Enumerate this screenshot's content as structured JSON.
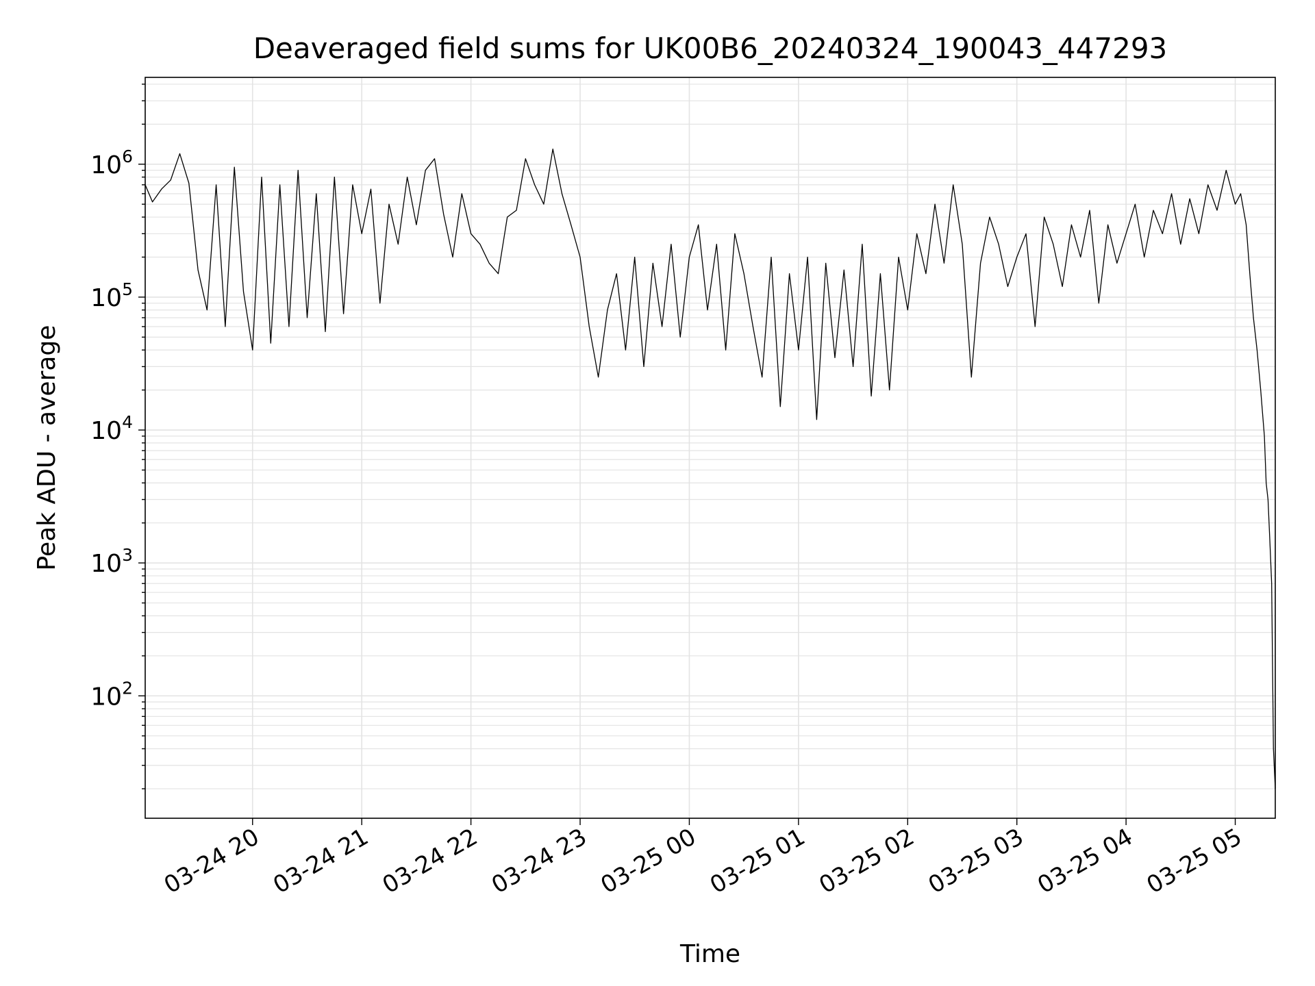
{
  "chart_data": {
    "type": "line",
    "title": "Deaveraged field sums for UK00B6_20240324_190043_447293",
    "xlabel": "Time",
    "ylabel": "Peak ADU - average",
    "x_axis": {
      "scale": "time",
      "range": [
        "2024-03-24 19:01",
        "2024-03-25 05:22"
      ],
      "ticks": [
        {
          "value": "2024-03-24 20:00",
          "label": "03-24 20"
        },
        {
          "value": "2024-03-24 21:00",
          "label": "03-24 21"
        },
        {
          "value": "2024-03-24 22:00",
          "label": "03-24 22"
        },
        {
          "value": "2024-03-24 23:00",
          "label": "03-24 23"
        },
        {
          "value": "2024-03-25 00:00",
          "label": "03-25 00"
        },
        {
          "value": "2024-03-25 01:00",
          "label": "03-25 01"
        },
        {
          "value": "2024-03-25 02:00",
          "label": "03-25 02"
        },
        {
          "value": "2024-03-25 03:00",
          "label": "03-25 03"
        },
        {
          "value": "2024-03-25 04:00",
          "label": "03-25 04"
        },
        {
          "value": "2024-03-25 05:00",
          "label": "03-25 05"
        }
      ]
    },
    "y_axis": {
      "scale": "log",
      "range": [
        12,
        4500000
      ],
      "ticks": [
        {
          "value": 100,
          "base": "10",
          "exp": "2"
        },
        {
          "value": 1000,
          "base": "10",
          "exp": "3"
        },
        {
          "value": 10000,
          "base": "10",
          "exp": "4"
        },
        {
          "value": 100000,
          "base": "10",
          "exp": "5"
        },
        {
          "value": 1000000,
          "base": "10",
          "exp": "6"
        }
      ]
    },
    "grid": true,
    "line_color": "#000000",
    "series": [
      {
        "x": [
          "2024-03-24 19:01",
          "2024-03-24 19:05",
          "2024-03-24 19:10",
          "2024-03-24 19:15",
          "2024-03-24 19:20",
          "2024-03-24 19:25",
          "2024-03-24 19:30",
          "2024-03-24 19:35",
          "2024-03-24 19:40",
          "2024-03-24 19:45",
          "2024-03-24 19:50",
          "2024-03-24 19:55",
          "2024-03-24 20:00",
          "2024-03-24 20:05",
          "2024-03-24 20:10",
          "2024-03-24 20:15",
          "2024-03-24 20:20",
          "2024-03-24 20:25",
          "2024-03-24 20:30",
          "2024-03-24 20:35",
          "2024-03-24 20:40",
          "2024-03-24 20:45",
          "2024-03-24 20:50",
          "2024-03-24 20:55",
          "2024-03-24 21:00",
          "2024-03-24 21:05",
          "2024-03-24 21:10",
          "2024-03-24 21:15",
          "2024-03-24 21:20",
          "2024-03-24 21:25",
          "2024-03-24 21:30",
          "2024-03-24 21:35",
          "2024-03-24 21:40",
          "2024-03-24 21:45",
          "2024-03-24 21:50",
          "2024-03-24 21:55",
          "2024-03-24 22:00",
          "2024-03-24 22:05",
          "2024-03-24 22:10",
          "2024-03-24 22:15",
          "2024-03-24 22:20",
          "2024-03-24 22:25",
          "2024-03-24 22:30",
          "2024-03-24 22:35",
          "2024-03-24 22:40",
          "2024-03-24 22:45",
          "2024-03-24 22:50",
          "2024-03-24 22:55",
          "2024-03-24 23:00",
          "2024-03-24 23:05",
          "2024-03-24 23:10",
          "2024-03-24 23:15",
          "2024-03-24 23:20",
          "2024-03-24 23:25",
          "2024-03-24 23:30",
          "2024-03-24 23:35",
          "2024-03-24 23:40",
          "2024-03-24 23:45",
          "2024-03-24 23:50",
          "2024-03-24 23:55",
          "2024-03-25 00:00",
          "2024-03-25 00:05",
          "2024-03-25 00:10",
          "2024-03-25 00:15",
          "2024-03-25 00:20",
          "2024-03-25 00:25",
          "2024-03-25 00:30",
          "2024-03-25 00:35",
          "2024-03-25 00:40",
          "2024-03-25 00:45",
          "2024-03-25 00:50",
          "2024-03-25 00:55",
          "2024-03-25 01:00",
          "2024-03-25 01:05",
          "2024-03-25 01:10",
          "2024-03-25 01:15",
          "2024-03-25 01:20",
          "2024-03-25 01:25",
          "2024-03-25 01:30",
          "2024-03-25 01:35",
          "2024-03-25 01:40",
          "2024-03-25 01:45",
          "2024-03-25 01:50",
          "2024-03-25 01:55",
          "2024-03-25 02:00",
          "2024-03-25 02:05",
          "2024-03-25 02:10",
          "2024-03-25 02:15",
          "2024-03-25 02:20",
          "2024-03-25 02:25",
          "2024-03-25 02:30",
          "2024-03-25 02:35",
          "2024-03-25 02:40",
          "2024-03-25 02:45",
          "2024-03-25 02:50",
          "2024-03-25 02:55",
          "2024-03-25 03:00",
          "2024-03-25 03:05",
          "2024-03-25 03:10",
          "2024-03-25 03:15",
          "2024-03-25 03:20",
          "2024-03-25 03:25",
          "2024-03-25 03:30",
          "2024-03-25 03:35",
          "2024-03-25 03:40",
          "2024-03-25 03:45",
          "2024-03-25 03:50",
          "2024-03-25 03:55",
          "2024-03-25 04:00",
          "2024-03-25 04:05",
          "2024-03-25 04:10",
          "2024-03-25 04:15",
          "2024-03-25 04:20",
          "2024-03-25 04:25",
          "2024-03-25 04:30",
          "2024-03-25 04:35",
          "2024-03-25 04:40",
          "2024-03-25 04:45",
          "2024-03-25 04:50",
          "2024-03-25 04:55",
          "2024-03-25 05:00",
          "2024-03-25 05:03",
          "2024-03-25 05:06",
          "2024-03-25 05:08",
          "2024-03-25 05:10",
          "2024-03-25 05:12",
          "2024-03-25 05:14",
          "2024-03-25 05:16",
          "2024-03-25 05:17",
          "2024-03-25 05:18",
          "2024-03-25 05:19",
          "2024-03-25 05:20",
          "2024-03-25 05:21",
          "2024-03-25 05:22"
        ],
        "y": [
          700000,
          520000,
          650000,
          760000,
          1200000,
          720000,
          160000,
          80000,
          700000,
          60000,
          950000,
          110000,
          40000,
          800000,
          45000,
          700000,
          60000,
          900000,
          70000,
          600000,
          55000,
          800000,
          75000,
          700000,
          300000,
          650000,
          90000,
          500000,
          250000,
          800000,
          350000,
          900000,
          1100000,
          420000,
          200000,
          600000,
          300000,
          250000,
          180000,
          150000,
          400000,
          450000,
          1100000,
          700000,
          500000,
          1300000,
          600000,
          350000,
          200000,
          60000,
          25000,
          80000,
          150000,
          40000,
          200000,
          30000,
          180000,
          60000,
          250000,
          50000,
          200000,
          350000,
          80000,
          250000,
          40000,
          300000,
          150000,
          60000,
          25000,
          200000,
          15000,
          150000,
          40000,
          200000,
          12000,
          180000,
          35000,
          160000,
          30000,
          250000,
          18000,
          150000,
          20000,
          200000,
          80000,
          300000,
          150000,
          500000,
          180000,
          700000,
          250000,
          25000,
          180000,
          400000,
          250000,
          120000,
          200000,
          300000,
          60000,
          400000,
          250000,
          120000,
          350000,
          200000,
          450000,
          90000,
          350000,
          180000,
          300000,
          500000,
          200000,
          450000,
          300000,
          600000,
          250000,
          550000,
          300000,
          700000,
          450000,
          900000,
          500000,
          600000,
          350000,
          150000,
          70000,
          40000,
          20000,
          9000,
          4000,
          3000,
          1500,
          700,
          40,
          20
        ]
      }
    ]
  }
}
